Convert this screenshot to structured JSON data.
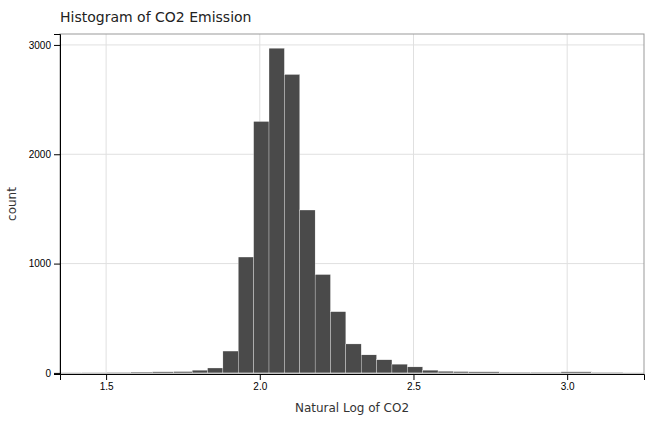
{
  "chart_data": {
    "type": "histogram",
    "title": "Histogram of CO2 Emission",
    "xlabel": "Natural Log of CO2",
    "ylabel": "count",
    "color": "#4a4a4a",
    "bins": [
      1.35,
      1.42,
      1.5,
      1.58,
      1.65,
      1.72,
      1.78,
      1.83,
      1.88,
      1.93,
      1.98,
      2.03,
      2.08,
      2.13,
      2.18,
      2.23,
      2.28,
      2.33,
      2.38,
      2.43,
      2.48,
      2.53,
      2.58,
      2.63,
      2.68,
      2.78,
      2.88,
      2.98,
      3.08,
      3.18
    ],
    "values": [
      2,
      3,
      5,
      8,
      10,
      12,
      25,
      45,
      200,
      1060,
      2300,
      2970,
      2730,
      1490,
      900,
      560,
      265,
      165,
      120,
      80,
      55,
      25,
      15,
      12,
      10,
      6,
      6,
      10,
      5
    ],
    "xlim": [
      1.35,
      3.25
    ],
    "ylim": [
      -10,
      3100
    ],
    "xticks": [
      1.5,
      {
        "value": 2.0,
        "label": "2.0"
      },
      2.5,
      {
        "value": 3.0,
        "label": "3.0"
      }
    ],
    "yticks": [
      0,
      1000,
      2000,
      3000
    ],
    "grid": true
  }
}
